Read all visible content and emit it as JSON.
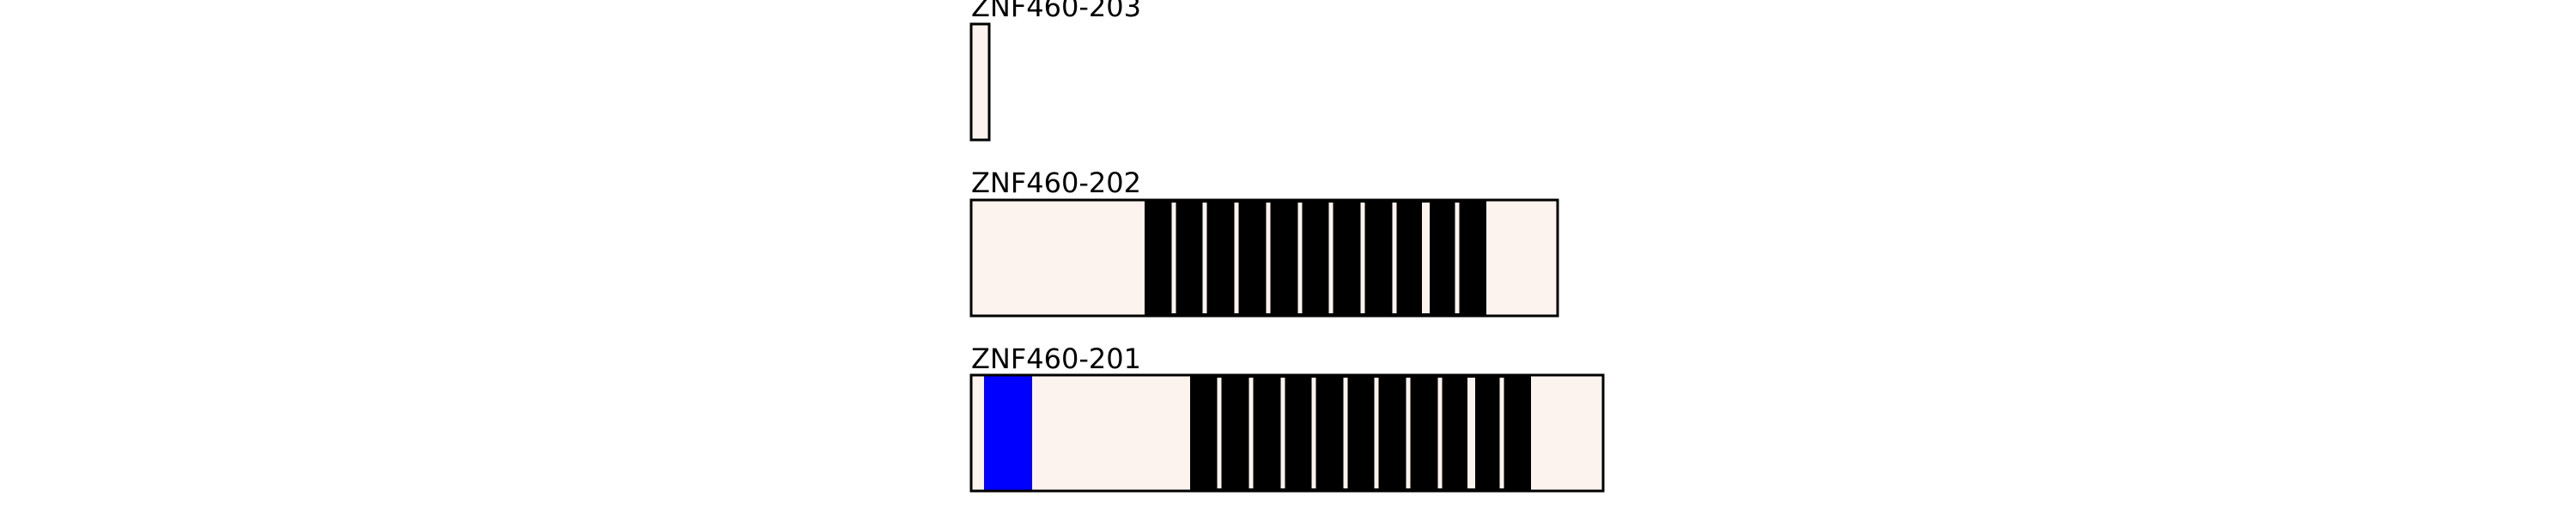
{
  "colors": {
    "utr": "#fdf3ee",
    "cds": "#000000",
    "domain": "#0000ff",
    "outline": "#000000",
    "junction": "#fdf3ee"
  },
  "transcripts": [
    {
      "label": "ZNF460-203"
    },
    {
      "label": "ZNF460-202"
    },
    {
      "label": "ZNF460-201"
    }
  ]
}
